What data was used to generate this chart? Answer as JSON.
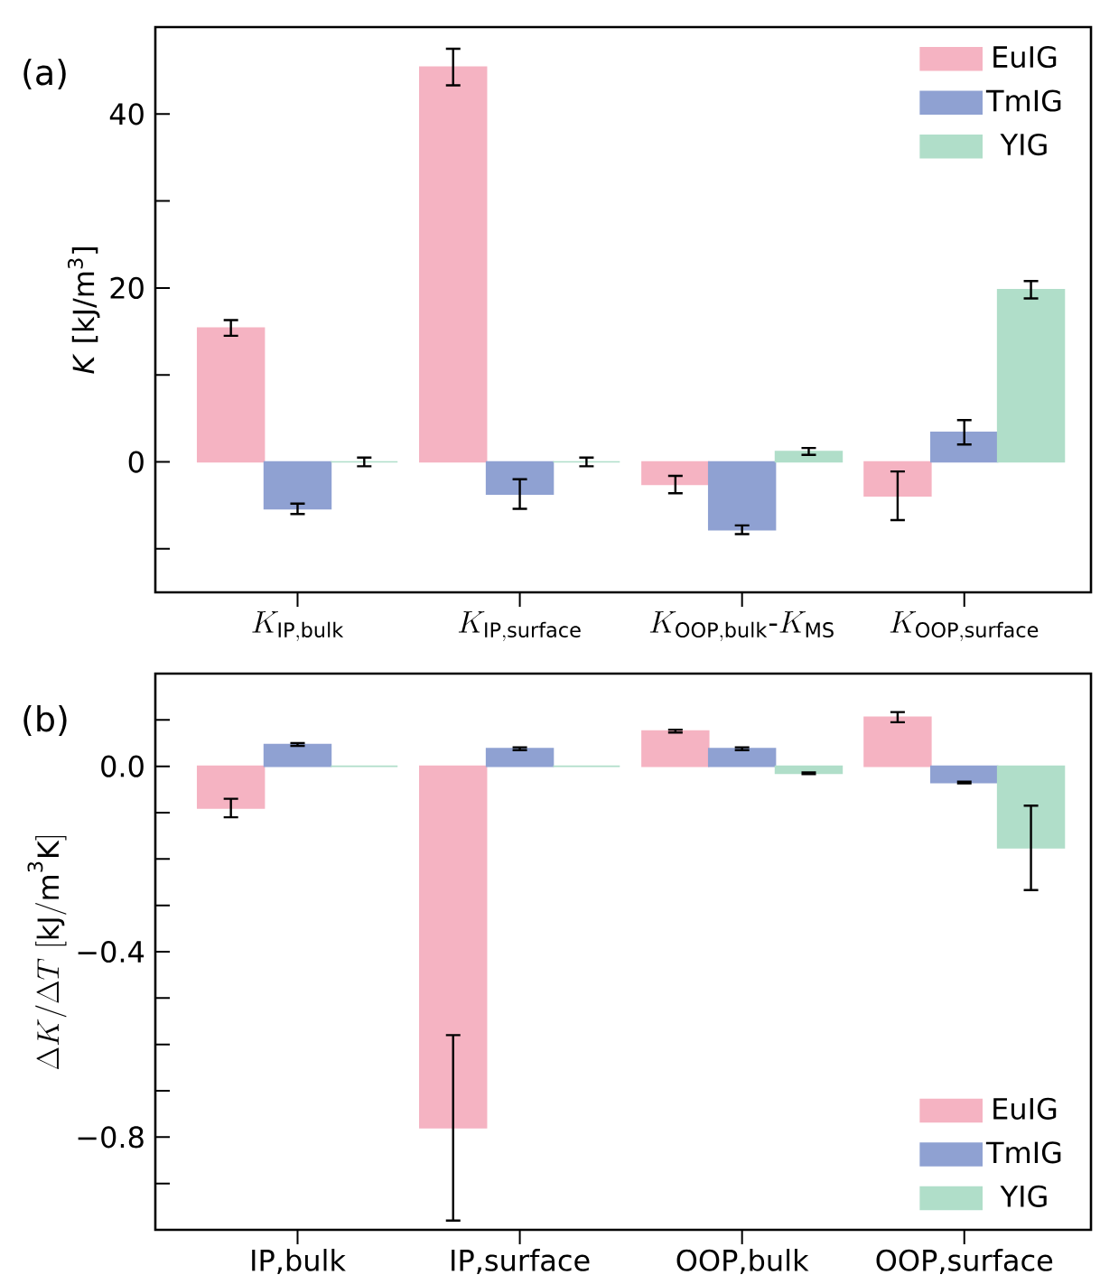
{
  "chart_data": [
    {
      "type": "bar",
      "annotations": [
        "(a)"
      ],
      "ylabel": "*K* [kJ/m$^{3}$]",
      "categories": [
        "K_{\\mathrm{IP,bulk}}",
        "K_{\\mathrm{IP,surface}}",
        "K_{\\mathrm{OOP,bulk}}\\text{-}K_{\\mathrm{MS}}",
        "K_{\\mathrm{OOP,surface}}"
      ],
      "series": [
        {
          "name": "EuIG",
          "color": "#f5b3c2",
          "values": [
            15.4,
            45.4,
            -2.6,
            -3.9
          ],
          "errors": [
            0.9,
            2.1,
            1.0,
            2.8
          ]
        },
        {
          "name": "TmIG",
          "color": "#8fa1d2",
          "values": [
            -5.4,
            -3.7,
            -7.8,
            3.4
          ],
          "errors": [
            0.6,
            1.7,
            0.5,
            1.4
          ]
        },
        {
          "name": "YIG",
          "color": "#b0dec9",
          "values": [
            0.0,
            0.0,
            1.2,
            19.8
          ],
          "errors": [
            0.5,
            0.5,
            0.4,
            1.0
          ]
        }
      ],
      "ylim": [
        -15,
        50
      ],
      "yticks": [
        {
          "value": -10,
          "label": null
        },
        0,
        {
          "value": 10,
          "label": null
        },
        20,
        {
          "value": 30,
          "label": null
        },
        40
      ],
      "legend": "top right"
    },
    {
      "type": "bar",
      "annotations": [
        "(b)"
      ],
      "ylabel": "\\Delta K/\\Delta T\\ [\\mathrm{kJ/m^{3}K}]",
      "categories": [
        "IP,bulk",
        "IP,surface",
        "OOP,bulk",
        "OOP,surface"
      ],
      "series": [
        {
          "name": "EuIG",
          "color": "#f5b3c2",
          "values": [
            -0.09,
            -0.78,
            0.076,
            0.106
          ],
          "errors": [
            0.02,
            0.2,
            0.003,
            0.011
          ]
        },
        {
          "name": "TmIG",
          "color": "#8fa1d2",
          "values": [
            0.047,
            0.038,
            0.038,
            -0.035
          ],
          "errors": [
            0.003,
            0.003,
            0.003,
            0.002
          ]
        },
        {
          "name": "YIG",
          "color": "#b0dec9",
          "values": [
            0.0,
            0.0,
            -0.015,
            -0.176
          ],
          "errors": [
            null,
            null,
            0.002,
            0.091
          ]
        }
      ],
      "ylim": [
        -1.0,
        0.2
      ],
      "yticks": [
        {
          "value": -0.9,
          "label": null
        },
        {
          "value": -0.8,
          "label": "−0.8"
        },
        {
          "value": -0.7,
          "label": null
        },
        {
          "value": -0.6,
          "label": null
        },
        {
          "value": -0.5,
          "label": null
        },
        {
          "value": -0.4,
          "label": "−0.4"
        },
        {
          "value": -0.3,
          "label": null
        },
        {
          "value": -0.2,
          "label": null
        },
        {
          "value": -0.1,
          "label": null
        },
        {
          "value": 0,
          "label": "0.0"
        },
        {
          "value": 0.1,
          "label": null
        }
      ],
      "legend": "bottom right"
    }
  ]
}
